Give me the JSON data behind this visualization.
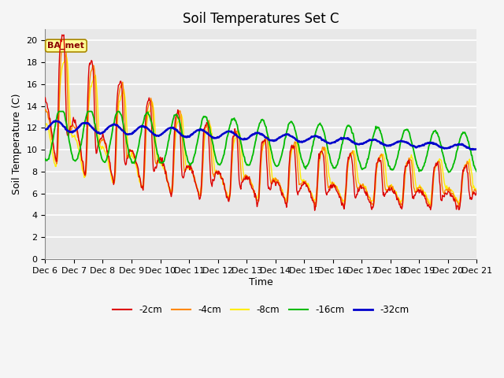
{
  "title": "Soil Temperatures Set C",
  "xlabel": "Time",
  "ylabel": "Soil Temperature (C)",
  "ylim": [
    0,
    21
  ],
  "yticks": [
    0,
    2,
    4,
    6,
    8,
    10,
    12,
    14,
    16,
    18,
    20
  ],
  "xlim_hours": [
    0,
    360
  ],
  "xtick_labels": [
    "Dec 6",
    "Dec 7",
    "Dec 8",
    "Dec 9",
    "Dec 10",
    "Dec 11",
    "Dec 12",
    "Dec 13",
    "Dec 14",
    "Dec 15",
    "Dec 16",
    "Dec 17",
    "Dec 18",
    "Dec 19",
    "Dec 20",
    "Dec 21"
  ],
  "xtick_positions": [
    0,
    24,
    48,
    72,
    96,
    120,
    144,
    168,
    192,
    216,
    240,
    264,
    288,
    312,
    336,
    360
  ],
  "colors": {
    "2cm": "#dd0000",
    "4cm": "#ff8800",
    "8cm": "#ffee00",
    "16cm": "#00bb00",
    "32cm": "#0000cc"
  },
  "annotation_text": "BA_met",
  "background_color": "#e8e8e8",
  "fig_bg_color": "#f5f5f5",
  "grid_color": "#ffffff",
  "title_fontsize": 12,
  "axis_fontsize": 9,
  "tick_fontsize": 8
}
